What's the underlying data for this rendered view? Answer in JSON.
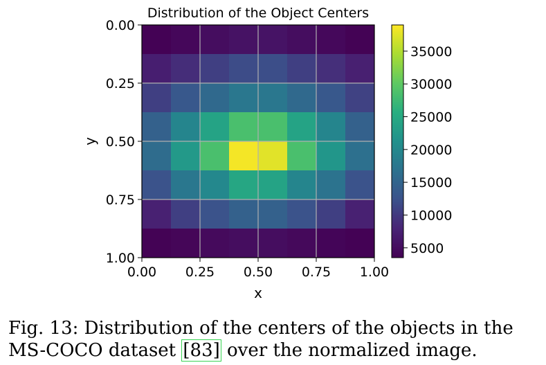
{
  "chart_data": {
    "type": "heatmap",
    "title": "Distribution of the Object Centers",
    "xlabel": "x",
    "ylabel": "y",
    "xlim": [
      0,
      1
    ],
    "ylim": [
      1,
      0
    ],
    "x_ticks": [
      "0.00",
      "0.25",
      "0.50",
      "0.75",
      "1.00"
    ],
    "y_ticks": [
      "0.00",
      "0.25",
      "0.50",
      "0.75",
      "1.00"
    ],
    "grid": true,
    "colormap": "viridis",
    "colorbar": {
      "range": [
        3500,
        39000
      ],
      "ticks": [
        5000,
        10000,
        15000,
        20000,
        25000,
        30000,
        35000
      ],
      "tick_labels": [
        "5000",
        "10000",
        "15000",
        "20000",
        "25000",
        "30000",
        "35000"
      ]
    },
    "rows": 8,
    "cols": 8,
    "values": [
      [
        3600,
        4300,
        5000,
        5600,
        5800,
        5000,
        4400,
        3700
      ],
      [
        7200,
        8800,
        10500,
        11800,
        12000,
        10500,
        9000,
        7400
      ],
      [
        10500,
        13200,
        15500,
        17500,
        17500,
        15500,
        13200,
        10800
      ],
      [
        14500,
        19500,
        24000,
        28500,
        28500,
        24000,
        19500,
        14500
      ],
      [
        16000,
        22500,
        28500,
        38500,
        37500,
        28500,
        22000,
        16500
      ],
      [
        12500,
        17500,
        20000,
        24500,
        24000,
        19500,
        17000,
        12500
      ],
      [
        7500,
        10500,
        12500,
        14500,
        14500,
        12500,
        10500,
        7500
      ],
      [
        3700,
        4100,
        4600,
        5000,
        5000,
        4500,
        4000,
        3600
      ]
    ]
  },
  "caption": {
    "prefix": "Fig. 13: Distribution of the centers of the objects in the MS-COCO dataset ",
    "ref": "[83]",
    "suffix": " over the normalized image."
  }
}
